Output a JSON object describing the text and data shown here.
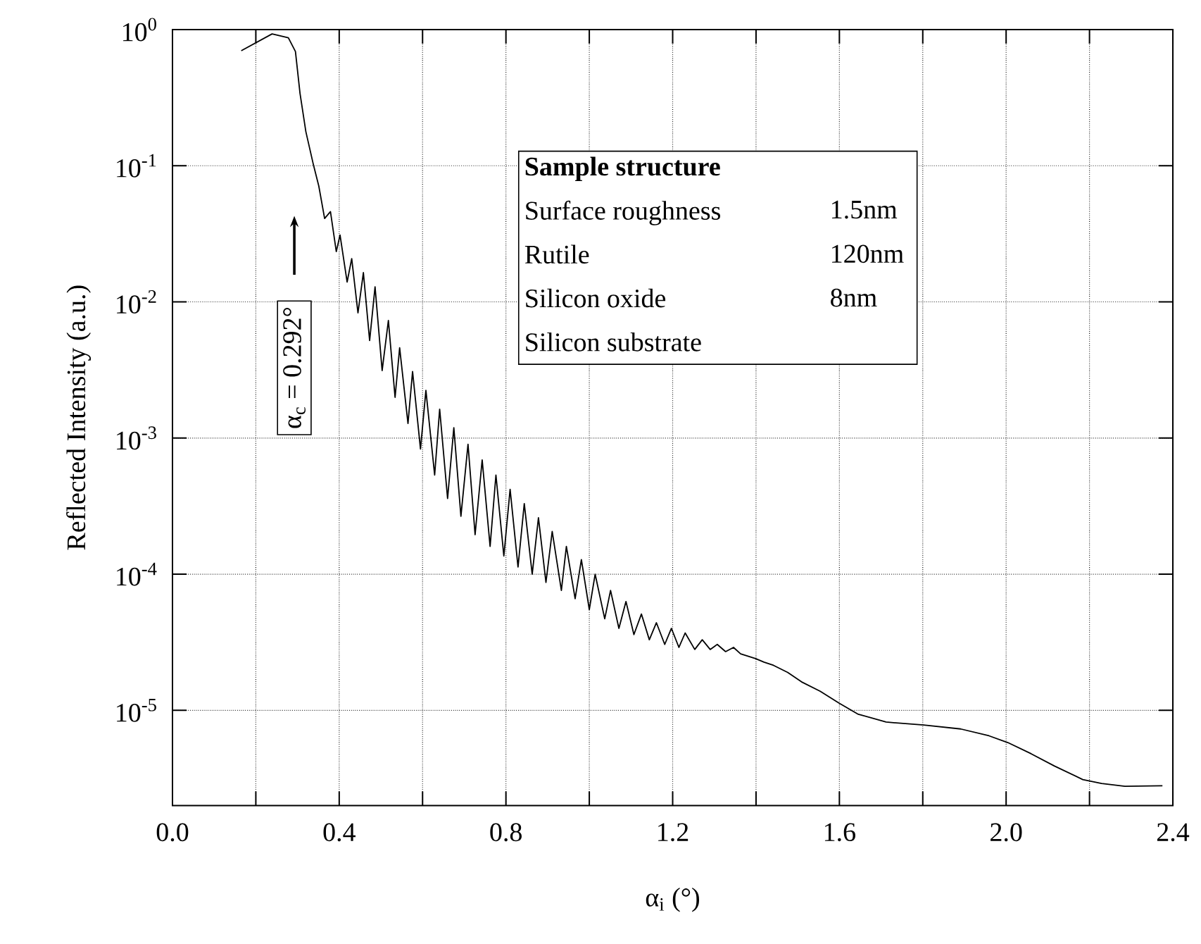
{
  "chart_data": {
    "type": "line",
    "xlabel": "α$_{i}$ (°)",
    "ylabel": "Reflected Intensity (a.u.)",
    "log": "y",
    "grid": true,
    "marker": "none",
    "line_style": "solid",
    "xlim": [
      0,
      2.4
    ],
    "ylim": [
      2e-06,
      1
    ],
    "xticks": [
      {
        "value": 0,
        "label": "0.0"
      },
      {
        "value": 0.2,
        "label": null
      },
      {
        "value": 0.4,
        "label": "0.4"
      },
      {
        "value": 0.6,
        "label": null
      },
      {
        "value": 0.8,
        "label": "0.8"
      },
      {
        "value": 1.0,
        "label": null
      },
      {
        "value": 1.2,
        "label": "1.2"
      },
      {
        "value": 1.4,
        "label": null
      },
      {
        "value": 1.6,
        "label": "1.6"
      },
      {
        "value": 1.8,
        "label": null
      },
      {
        "value": 2.0,
        "label": "2.0"
      },
      {
        "value": 2.2,
        "label": null
      },
      {
        "value": 2.4,
        "label": "2.4"
      }
    ],
    "yticks": [
      {
        "value": 1e-05,
        "label": "10$^{-5}$"
      },
      {
        "value": 0.0001,
        "label": "10$^{-4}$"
      },
      {
        "value": 0.001,
        "label": "10$^{-3}$"
      },
      {
        "value": 0.01,
        "label": "10$^{-2}$"
      },
      {
        "value": 0.1,
        "label": "10$^{-1}$"
      },
      {
        "value": 1,
        "label": "10$^{0}$"
      }
    ],
    "annotations": [
      "α$_{c}$ = 0.292°",
      "Sample structure",
      "Surface roughness",
      "1.5nm",
      "Rutile",
      "120nm",
      "Silicon oxide",
      "8nm",
      "Silicon substrate"
    ],
    "series": [
      {
        "color": "#000000",
        "x": [
          0.165,
          0.239,
          0.278,
          0.295,
          0.306,
          0.32,
          0.338,
          0.351,
          0.365,
          0.379,
          0.393,
          0.402,
          0.419,
          0.43,
          0.445,
          0.458,
          0.473,
          0.486,
          0.503,
          0.518,
          0.534,
          0.545,
          0.565,
          0.576,
          0.595,
          0.608,
          0.629,
          0.641,
          0.66,
          0.675,
          0.692,
          0.709,
          0.726,
          0.743,
          0.762,
          0.776,
          0.795,
          0.81,
          0.829,
          0.844,
          0.863,
          0.878,
          0.896,
          0.911,
          0.933,
          0.945,
          0.966,
          0.981,
          1.0,
          1.014,
          1.037,
          1.051,
          1.071,
          1.088,
          1.107,
          1.125,
          1.144,
          1.161,
          1.181,
          1.197,
          1.215,
          1.23,
          1.253,
          1.271,
          1.29,
          1.307,
          1.327,
          1.346,
          1.363,
          1.399,
          1.419,
          1.442,
          1.476,
          1.509,
          1.554,
          1.599,
          1.644,
          1.712,
          1.802,
          1.891,
          1.959,
          2.004,
          2.06,
          2.116,
          2.184,
          2.229,
          2.285,
          2.375
        ],
        "values": [
          0.7,
          0.93,
          0.87,
          0.69,
          0.34,
          0.178,
          0.102,
          0.071,
          0.041,
          0.046,
          0.0234,
          0.031,
          0.014,
          0.0208,
          0.0083,
          0.0164,
          0.0052,
          0.0129,
          0.00313,
          0.0073,
          0.00199,
          0.0046,
          0.00128,
          0.00308,
          0.00083,
          0.00224,
          0.000535,
          0.00163,
          0.00036,
          0.00119,
          0.000266,
          0.0009,
          0.000195,
          0.00069,
          0.00016,
          0.000535,
          0.000136,
          0.00042,
          0.000113,
          0.00033,
          0.0001,
          0.00026,
          8.7e-05,
          0.000206,
          7.6e-05,
          0.00016,
          6.6e-05,
          0.000128,
          5.5e-05,
          0.0001,
          4.7e-05,
          7.6e-05,
          4e-05,
          6.3e-05,
          3.6e-05,
          5.1e-05,
          3.3e-05,
          4.4e-05,
          3.05e-05,
          4e-05,
          2.9e-05,
          3.7e-05,
          2.8e-05,
          3.3e-05,
          2.8e-05,
          3.05e-05,
          2.7e-05,
          2.9e-05,
          2.6e-05,
          2.4e-05,
          2.26e-05,
          2.14e-05,
          1.9e-05,
          1.62e-05,
          1.38e-05,
          1.13e-05,
          9.4e-06,
          8.2e-06,
          7.8e-06,
          7.3e-06,
          6.5e-06,
          5.8e-06,
          4.8e-06,
          3.9e-06,
          3.1e-06,
          2.9e-06,
          2.77e-06,
          2.79e-06
        ]
      }
    ]
  }
}
